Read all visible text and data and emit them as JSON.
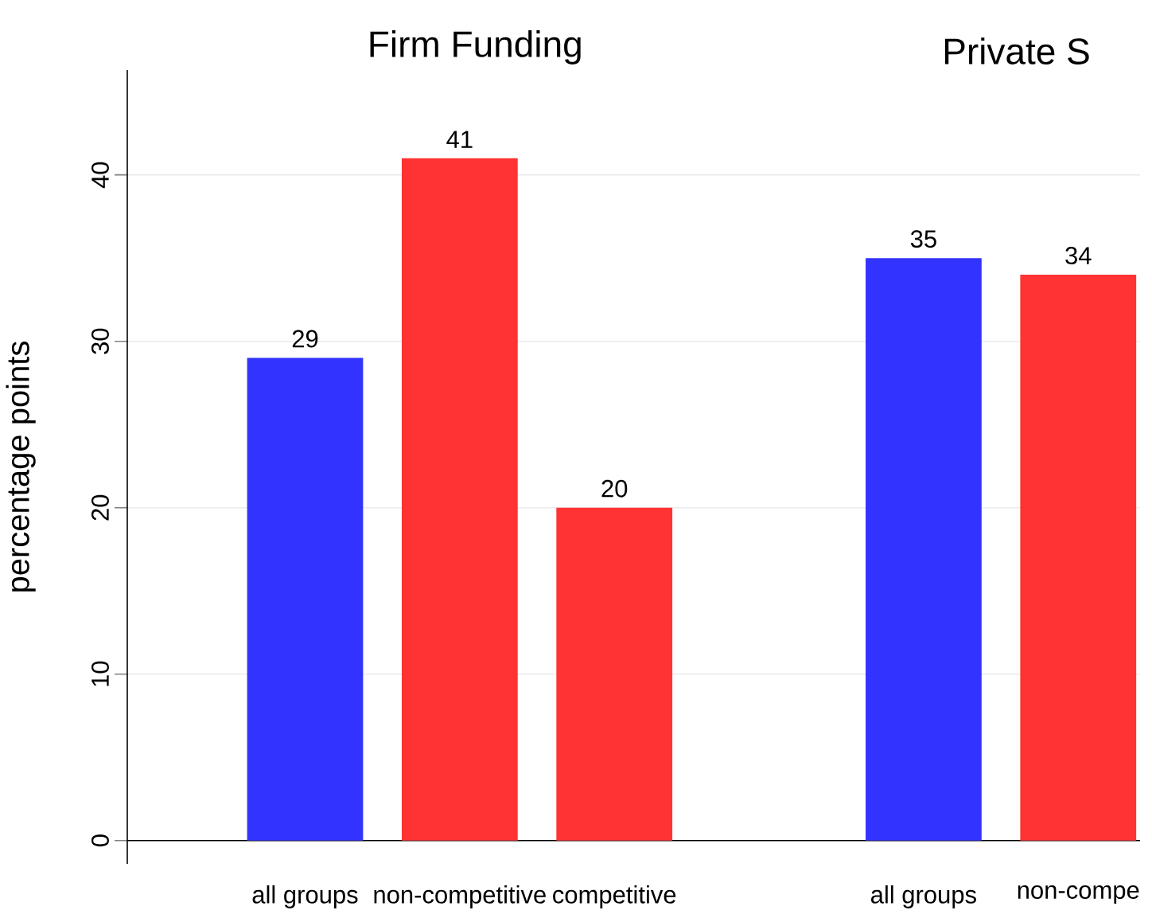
{
  "chart_data": {
    "type": "bar",
    "annotations": [
      "Firm Funding",
      "Private S"
    ],
    "ylabel": "percentage points",
    "categories": [
      "all groups",
      "non-competitive",
      "competitive",
      null,
      "all groups",
      "non-compe"
    ],
    "values": [
      29,
      41,
      20,
      null,
      35,
      34
    ],
    "colors": [
      "#3333ff",
      "#ff3333",
      "#ff3333",
      null,
      "#3333ff",
      "#ff3333"
    ],
    "ylim": [
      -1.4,
      46.3
    ],
    "yticks": [
      0,
      10,
      20,
      30,
      40
    ],
    "grid": "y",
    "data_labels": true
  }
}
